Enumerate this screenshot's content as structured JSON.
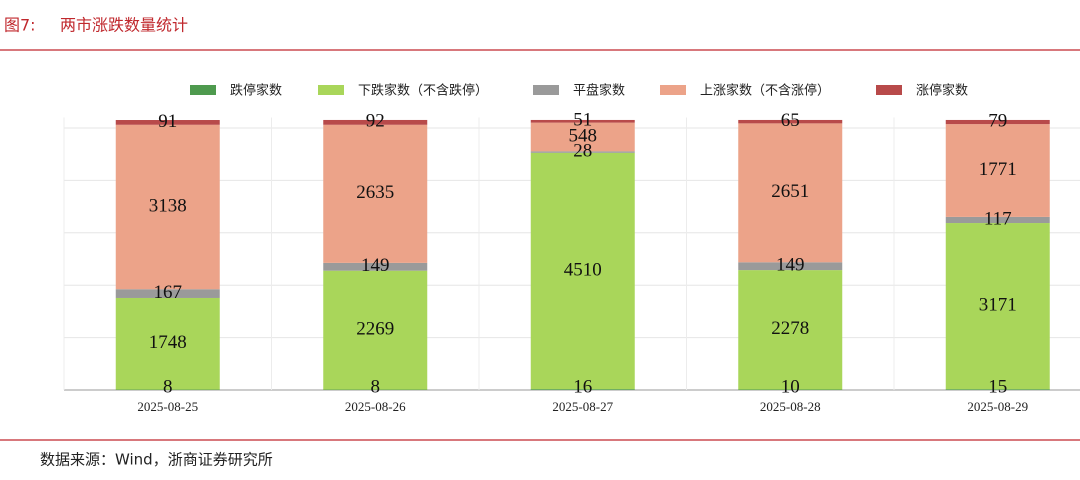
{
  "figure_label": "图7:",
  "chart_data": {
    "type": "stacked_bar",
    "title": "两市涨跌数量统计",
    "categories": [
      "2025-08-25",
      "2025-08-26",
      "2025-08-27",
      "2025-08-28",
      "2025-08-29"
    ],
    "series": [
      {
        "name": "跌停家数",
        "color": "#4e9a4e",
        "values": [
          8,
          8,
          16,
          10,
          15
        ]
      },
      {
        "name": "下跌家数（不含跌停）",
        "color": "#a9d65a",
        "values": [
          1748,
          2269,
          4510,
          2278,
          3171
        ]
      },
      {
        "name": "平盘家数",
        "color": "#9a9a9a",
        "values": [
          167,
          149,
          28,
          149,
          117
        ]
      },
      {
        "name": "上涨家数（不含涨停）",
        "color": "#eca389",
        "values": [
          3138,
          2635,
          548,
          2651,
          1771
        ]
      },
      {
        "name": "涨停家数",
        "color": "#b84a4a",
        "values": [
          91,
          92,
          51,
          65,
          79
        ]
      }
    ],
    "ylim": [
      0,
      5200
    ],
    "yticks": [
      0,
      1000,
      2000,
      3000,
      4000,
      5000
    ],
    "grid": true,
    "legend": "top"
  },
  "source": "数据来源：Wind，浙商证券研究所"
}
